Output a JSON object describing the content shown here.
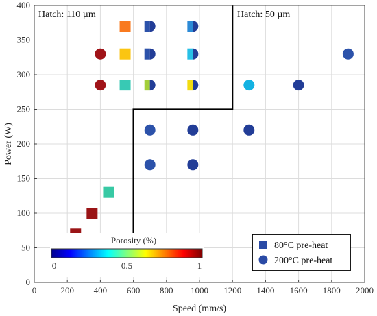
{
  "chart_data": {
    "type": "scatter",
    "xlabel": "Speed (mm/s)",
    "ylabel": "Power (W)",
    "xlim": [
      0,
      2000
    ],
    "ylim": [
      0,
      400
    ],
    "x_ticks": [
      0,
      200,
      400,
      600,
      800,
      1000,
      1200,
      1400,
      1600,
      1800,
      2000
    ],
    "y_ticks": [
      0,
      50,
      100,
      150,
      200,
      250,
      300,
      350,
      400
    ],
    "grid": true,
    "annotations": [
      "Hatch: 110 µm",
      "Hatch: 50 µm"
    ],
    "region_boundary": [
      [
        600,
        60
      ],
      [
        600,
        250
      ],
      [
        1200,
        250
      ],
      [
        1200,
        400
      ]
    ],
    "colorbar": {
      "label": "Porosity (%)",
      "ticks": [
        "0",
        "0.5",
        "1"
      ],
      "range": [
        0,
        1
      ],
      "colormap": "jet",
      "placement": "inset-bottom-left"
    },
    "legend": {
      "placement": "bottom-right",
      "entries": [
        {
          "label": "80°C pre-heat",
          "marker": "square",
          "color": "#2a4aa5"
        },
        {
          "label": "200°C pre-heat",
          "marker": "circle",
          "color": "#2a4aa5"
        }
      ]
    },
    "squares": [
      {
        "x": 550,
        "y": 370,
        "color": "#f97a1f"
      },
      {
        "x": 550,
        "y": 330,
        "color": "#fbc512"
      },
      {
        "x": 550,
        "y": 285,
        "color": "#38c9b4"
      },
      {
        "x": 450,
        "y": 130,
        "color": "#38c9a4"
      },
      {
        "x": 350,
        "y": 100,
        "color": "#9a1416"
      },
      {
        "x": 250,
        "y": 70,
        "color": "#9a1416"
      }
    ],
    "circles": [
      {
        "x": 400,
        "y": 330,
        "color": "#a01318"
      },
      {
        "x": 400,
        "y": 285,
        "color": "#a01318"
      },
      {
        "x": 1300,
        "y": 285,
        "color": "#14b2e2"
      },
      {
        "x": 1600,
        "y": 285,
        "color": "#223d97"
      },
      {
        "x": 1900,
        "y": 330,
        "color": "#2c52aa"
      },
      {
        "x": 700,
        "y": 220,
        "color": "#2c52aa"
      },
      {
        "x": 960,
        "y": 220,
        "color": "#223d97"
      },
      {
        "x": 1300,
        "y": 220,
        "color": "#223d97"
      },
      {
        "x": 700,
        "y": 170,
        "color": "#2c52aa"
      },
      {
        "x": 960,
        "y": 170,
        "color": "#223d97"
      }
    ],
    "split_markers": [
      {
        "x": 700,
        "y": 370,
        "left_color": "#2c52aa",
        "right_color": "#223d97"
      },
      {
        "x": 700,
        "y": 330,
        "left_color": "#2c52aa",
        "right_color": "#223d97"
      },
      {
        "x": 700,
        "y": 285,
        "left_color": "#a3cf3a",
        "right_color": "#223d97"
      },
      {
        "x": 960,
        "y": 370,
        "left_color": "#2c8ad6",
        "right_color": "#223d97"
      },
      {
        "x": 960,
        "y": 330,
        "left_color": "#27c0e6",
        "right_color": "#223d97"
      },
      {
        "x": 960,
        "y": 285,
        "left_color": "#f2dc10",
        "right_color": "#223d97"
      }
    ]
  }
}
